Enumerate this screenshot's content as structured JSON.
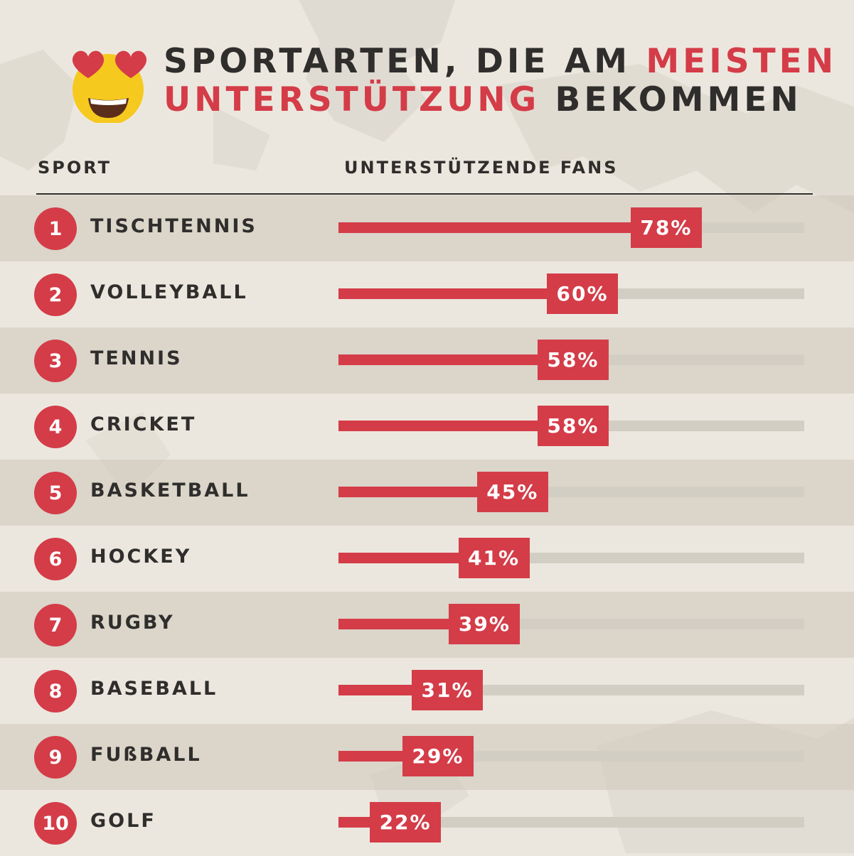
{
  "title": {
    "line1_plain": "SPORTARTEN, DIE AM ",
    "line1_accent": "MEISTEN",
    "line2_accent": "UNTERSTÜTZUNG",
    "line2_plain": " BEKOMMEN"
  },
  "emoji_icon": "heart-eyes-emoji-icon",
  "colors": {
    "accent": "#d43c48",
    "text": "#2f2e2c",
    "background": "#ece7de",
    "track": "#d3cec3"
  },
  "columns": {
    "sport": "SPORT",
    "fans": "UNTERSTÜTZENDE FANS"
  },
  "chart_data": {
    "type": "bar",
    "orientation": "horizontal",
    "ylabel": "UNTERSTÜTZENDE FANS",
    "xlabel": "SPORT",
    "xlim": [
      0,
      100
    ],
    "unit": "%",
    "rows": [
      {
        "rank": "1",
        "sport": "TISCHTENNIS",
        "value": 78,
        "label": "78%"
      },
      {
        "rank": "2",
        "sport": "VOLLEYBALL",
        "value": 60,
        "label": "60%"
      },
      {
        "rank": "3",
        "sport": "TENNIS",
        "value": 58,
        "label": "58%"
      },
      {
        "rank": "4",
        "sport": "CRICKET",
        "value": 58,
        "label": "58%"
      },
      {
        "rank": "5",
        "sport": "BASKETBALL",
        "value": 45,
        "label": "45%"
      },
      {
        "rank": "6",
        "sport": "HOCKEY",
        "value": 41,
        "label": "41%"
      },
      {
        "rank": "7",
        "sport": "RUGBY",
        "value": 39,
        "label": "39%"
      },
      {
        "rank": "8",
        "sport": "BASEBALL",
        "value": 31,
        "label": "31%"
      },
      {
        "rank": "9",
        "sport": "FUßBALL",
        "value": 29,
        "label": "29%"
      },
      {
        "rank": "10",
        "sport": "GOLF",
        "value": 22,
        "label": "22%"
      }
    ]
  }
}
